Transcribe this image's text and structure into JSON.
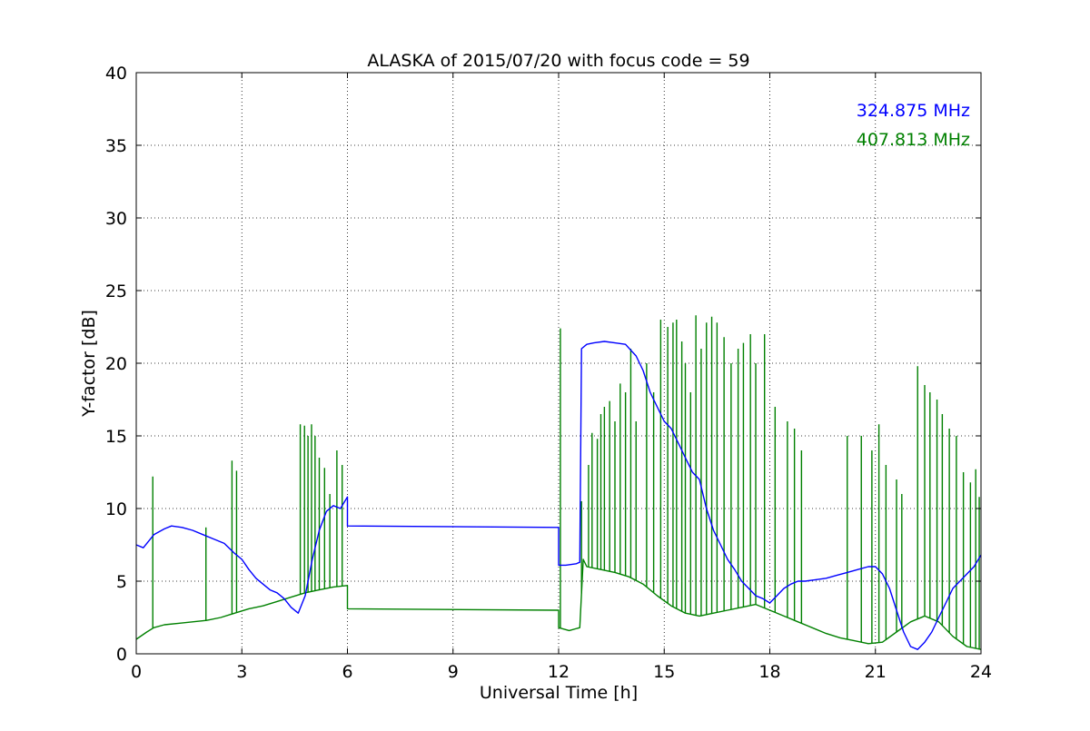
{
  "chart_data": {
    "type": "line",
    "title": "ALASKA of 2015/07/20 with focus code = 59",
    "xlabel": "Universal Time [h]",
    "ylabel": "Y-factor [dB]",
    "xlim": [
      0,
      24
    ],
    "ylim": [
      0,
      40
    ],
    "xticks": [
      0,
      3,
      6,
      9,
      12,
      15,
      18,
      21,
      24
    ],
    "yticks": [
      0,
      5,
      10,
      15,
      20,
      25,
      30,
      35,
      40
    ],
    "xtick_labels": [
      "0",
      "3",
      "6",
      "9",
      "12",
      "15",
      "18",
      "21",
      "24"
    ],
    "ytick_labels": [
      "0",
      "5",
      "10",
      "15",
      "20",
      "25",
      "30",
      "35",
      "40"
    ],
    "grid": true,
    "legend_position": "top-right",
    "series": [
      {
        "name": "324.875 MHz",
        "color": "#0000ff",
        "x": [
          0.0,
          0.2,
          0.5,
          0.8,
          1.0,
          1.3,
          1.6,
          1.9,
          2.2,
          2.5,
          2.8,
          3.0,
          3.2,
          3.4,
          3.6,
          3.8,
          4.0,
          4.2,
          4.4,
          4.6,
          4.8,
          5.0,
          5.2,
          5.4,
          5.6,
          5.8,
          6.0,
          6.0,
          12.0,
          12.0,
          12.2,
          12.5,
          12.6,
          12.65,
          12.8,
          13.0,
          13.3,
          13.6,
          13.9,
          14.2,
          14.4,
          14.6,
          14.8,
          15.0,
          15.2,
          15.4,
          15.6,
          15.8,
          16.0,
          16.2,
          16.4,
          16.6,
          16.8,
          17.0,
          17.2,
          17.4,
          17.6,
          17.8,
          18.0,
          18.2,
          18.4,
          18.6,
          18.8,
          19.0,
          19.3,
          19.6,
          19.9,
          20.2,
          20.5,
          20.8,
          21.0,
          21.2,
          21.4,
          21.6,
          21.8,
          22.0,
          22.2,
          22.4,
          22.6,
          22.8,
          23.0,
          23.2,
          23.4,
          23.6,
          23.8,
          24.0
        ],
        "y": [
          7.5,
          7.3,
          8.2,
          8.6,
          8.8,
          8.7,
          8.5,
          8.2,
          7.9,
          7.6,
          6.9,
          6.5,
          5.8,
          5.2,
          4.8,
          4.4,
          4.2,
          3.8,
          3.2,
          2.8,
          4.0,
          6.5,
          8.5,
          9.8,
          10.2,
          10.0,
          10.8,
          8.8,
          8.7,
          6.1,
          6.1,
          6.2,
          6.3,
          21.0,
          21.3,
          21.4,
          21.5,
          21.4,
          21.3,
          20.5,
          19.5,
          18.0,
          17.0,
          16.0,
          15.5,
          14.5,
          13.5,
          12.5,
          12.0,
          10.0,
          8.5,
          7.5,
          6.5,
          5.8,
          5.0,
          4.5,
          4.0,
          3.8,
          3.5,
          4.0,
          4.5,
          4.8,
          5.0,
          5.0,
          5.1,
          5.2,
          5.4,
          5.6,
          5.8,
          6.0,
          6.0,
          5.5,
          4.5,
          3.0,
          1.5,
          0.5,
          0.3,
          0.8,
          1.5,
          2.5,
          3.5,
          4.5,
          5.0,
          5.5,
          6.0,
          6.8
        ]
      },
      {
        "name": "407.813 MHz",
        "color": "#008000",
        "x": [
          0.0,
          0.3,
          0.5,
          0.8,
          1.2,
          1.6,
          2.0,
          2.4,
          2.8,
          3.2,
          3.6,
          4.0,
          4.4,
          4.8,
          5.2,
          5.6,
          6.0,
          6.0,
          12.0,
          12.0,
          12.3,
          12.6,
          12.7,
          12.8,
          13.2,
          13.6,
          14.0,
          14.4,
          14.8,
          15.2,
          15.6,
          16.0,
          16.4,
          16.8,
          17.2,
          17.6,
          18.0,
          18.4,
          18.8,
          19.2,
          19.6,
          20.0,
          20.4,
          20.8,
          21.2,
          21.6,
          22.0,
          22.4,
          22.8,
          23.2,
          23.6,
          24.0
        ],
        "y": [
          1.0,
          1.5,
          1.8,
          2.0,
          2.1,
          2.2,
          2.3,
          2.5,
          2.8,
          3.1,
          3.3,
          3.6,
          3.9,
          4.2,
          4.4,
          4.6,
          4.7,
          3.1,
          3.0,
          1.8,
          1.6,
          1.8,
          6.5,
          6.0,
          5.8,
          5.6,
          5.3,
          4.8,
          4.0,
          3.3,
          2.8,
          2.6,
          2.8,
          3.0,
          3.2,
          3.4,
          3.0,
          2.6,
          2.2,
          1.8,
          1.4,
          1.1,
          0.9,
          0.7,
          0.8,
          1.5,
          2.2,
          2.6,
          2.2,
          1.2,
          0.5,
          0.3
        ]
      }
    ],
    "spikes": [
      {
        "series": 1,
        "x": [
          0.47,
          1.98,
          2.72,
          2.85,
          4.66,
          4.78,
          4.88,
          4.98,
          5.08,
          5.2,
          5.35,
          5.5,
          5.7,
          5.85,
          12.05,
          12.65,
          12.85,
          12.95,
          13.1,
          13.2,
          13.3,
          13.45,
          13.6,
          13.75,
          13.9,
          14.05,
          14.2,
          14.5,
          14.7,
          14.9,
          15.1,
          15.25,
          15.35,
          15.5,
          15.6,
          15.75,
          15.9,
          16.05,
          16.2,
          16.35,
          16.5,
          16.7,
          16.9,
          17.1,
          17.25,
          17.45,
          17.6,
          17.85,
          18.15,
          18.5,
          18.7,
          18.9,
          20.2,
          20.6,
          20.9,
          21.1,
          21.3,
          21.6,
          21.75,
          22.2,
          22.4,
          22.55,
          22.75,
          22.9,
          23.1,
          23.3,
          23.5,
          23.7,
          23.85,
          23.95
        ],
        "peaks": [
          12.2,
          8.7,
          13.3,
          12.6,
          15.8,
          15.7,
          15.0,
          15.8,
          15.0,
          13.5,
          12.8,
          11.0,
          14.0,
          13.0,
          22.4,
          10.5,
          13.0,
          15.2,
          14.8,
          16.5,
          17.0,
          17.4,
          16.0,
          18.6,
          18.0,
          21.0,
          16.0,
          20.0,
          18.0,
          23.0,
          22.5,
          22.8,
          23.0,
          21.5,
          20.0,
          18.0,
          23.3,
          21.0,
          22.8,
          23.2,
          22.8,
          21.8,
          20.0,
          21.0,
          21.4,
          22.0,
          20.0,
          22.0,
          17.0,
          16.0,
          15.5,
          14.0,
          15.0,
          15.0,
          14.0,
          15.8,
          13.0,
          12.0,
          11.0,
          19.8,
          18.5,
          18.0,
          17.5,
          16.5,
          15.5,
          15.0,
          12.5,
          11.8,
          12.7,
          10.8
        ]
      }
    ]
  }
}
